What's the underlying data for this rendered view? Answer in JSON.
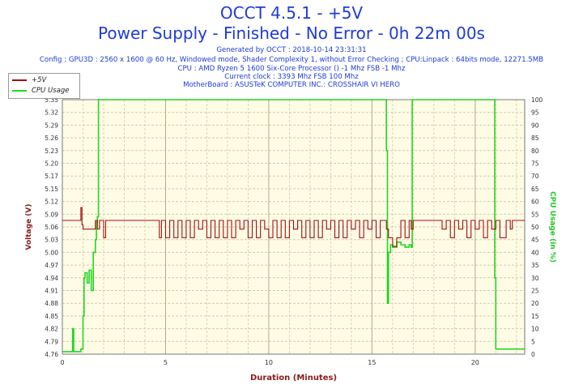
{
  "title_line1": "OCCT 4.5.1 - +5V",
  "title_line2": "Power Supply - Finished - No Error - 0h 22m 00s",
  "info": {
    "generated": "Generated by OCCT : 2018-10-14 23:31:31",
    "config": "Config : GPU3D : 2560 x 1600 @ 60 Hz, Windowed mode, Shader Complexity 1, without Error Checking ; CPU:Linpack : 64bits mode, 12271.5MB",
    "cpu": "CPU : AMD Ryzen 5 1600 Six-Core Processor () -1 Mhz FSB -1 Mhz",
    "clock": "Current clock : 3393 Mhz FSB 100 Mhz",
    "motherboard": "MotherBoard : ASUSTeK COMPUTER INC.: CROSSHAIR VI HERO"
  },
  "colors": {
    "voltage": "#9c1010",
    "cpu": "#22d622",
    "axis_left": "#8b1a1a",
    "axis_right": "#22c822",
    "plot_bg": "#fffce6",
    "grid": "#d6c9a8",
    "title": "#1f3bd6"
  },
  "chart_data": {
    "type": "line",
    "xlabel": "Duration (Minutes)",
    "ylabel_left": "Voltage (V)",
    "ylabel_right": "CPU Usage (in %)",
    "xlim": [
      0,
      22.4
    ],
    "ylim_left": [
      4.76,
      5.35
    ],
    "ylim_right": [
      0,
      100
    ],
    "x_ticks": [
      "0",
      "5",
      "10",
      "15",
      "20"
    ],
    "x_tick_values": [
      0,
      5,
      10,
      15,
      20
    ],
    "y_left_ticks": [
      "4.76",
      "4.79",
      "4.82",
      "4.85",
      "4.88",
      "4.91",
      "4.94",
      "4.97",
      "5.00",
      "5.03",
      "5.06",
      "5.09",
      "5.12",
      "5.15",
      "5.17",
      "5.20",
      "5.23",
      "5.26",
      "5.29",
      "5.32",
      "5.35"
    ],
    "y_right_ticks": [
      "0",
      "5",
      "10",
      "15",
      "20",
      "25",
      "30",
      "35",
      "40",
      "45",
      "50",
      "55",
      "60",
      "65",
      "70",
      "75",
      "80",
      "85",
      "90",
      "95",
      "100"
    ],
    "legend": [
      "+5V",
      "CPU Usage"
    ],
    "grid": true,
    "series": [
      {
        "name": "+5V",
        "axis": "left",
        "x": [
          0,
          0.8,
          0.9,
          0.95,
          1.0,
          1.05,
          1.1,
          1.15,
          1.5,
          1.6,
          1.7,
          1.8,
          2.0,
          2.1,
          2.2,
          4.6,
          4.7,
          4.8,
          5.0,
          5.2,
          5.4,
          5.6,
          5.8,
          6.0,
          6.2,
          6.4,
          6.6,
          6.8,
          7.0,
          7.2,
          7.4,
          7.6,
          7.8,
          8.0,
          8.2,
          8.4,
          8.6,
          8.8,
          9.0,
          9.2,
          9.4,
          9.6,
          9.8,
          10.0,
          10.2,
          10.4,
          10.6,
          10.8,
          11.0,
          11.2,
          11.4,
          11.6,
          11.8,
          12.0,
          12.2,
          12.4,
          12.6,
          12.8,
          13.0,
          13.2,
          13.4,
          13.6,
          13.8,
          14.0,
          14.2,
          14.4,
          14.6,
          14.8,
          15.0,
          15.2,
          15.4,
          15.6,
          15.7,
          15.8,
          16.0,
          16.2,
          16.4,
          16.6,
          16.8,
          16.9,
          17.0,
          17.2,
          17.4,
          17.6,
          17.8,
          18.0,
          18.2,
          18.4,
          18.6,
          18.8,
          19.0,
          19.2,
          19.4,
          19.6,
          19.8,
          20.0,
          20.2,
          20.4,
          20.6,
          20.8,
          21.0,
          21.2,
          21.5,
          21.7,
          21.8,
          22.4
        ],
        "values": [
          5.07,
          5.07,
          5.1,
          5.06,
          5.05,
          5.05,
          5.05,
          5.05,
          5.05,
          5.07,
          5.05,
          5.07,
          5.03,
          5.07,
          5.07,
          5.07,
          5.03,
          5.07,
          5.03,
          5.07,
          5.03,
          5.07,
          5.03,
          5.07,
          5.03,
          5.07,
          5.05,
          5.07,
          5.03,
          5.07,
          5.03,
          5.07,
          5.03,
          5.07,
          5.03,
          5.07,
          5.05,
          5.07,
          5.03,
          5.07,
          5.03,
          5.07,
          5.05,
          5.03,
          5.07,
          5.03,
          5.07,
          5.03,
          5.07,
          5.05,
          5.07,
          5.03,
          5.07,
          5.03,
          5.07,
          5.03,
          5.07,
          5.05,
          5.07,
          5.03,
          5.07,
          5.03,
          5.07,
          5.05,
          5.07,
          5.03,
          5.07,
          5.05,
          5.07,
          5.03,
          5.07,
          5.07,
          5.05,
          5.03,
          5.01,
          5.03,
          5.07,
          5.03,
          5.07,
          5.05,
          5.07,
          5.07,
          5.07,
          5.07,
          5.07,
          5.07,
          5.07,
          5.05,
          5.07,
          5.03,
          5.07,
          5.05,
          5.07,
          5.03,
          5.07,
          5.05,
          5.07,
          5.03,
          5.07,
          5.05,
          5.07,
          5.03,
          5.07,
          5.05,
          5.07,
          5.07
        ]
      },
      {
        "name": "CPU Usage",
        "axis": "right",
        "x": [
          0,
          0.4,
          0.5,
          0.55,
          0.6,
          0.8,
          0.9,
          1.0,
          1.05,
          1.1,
          1.2,
          1.3,
          1.4,
          1.5,
          1.6,
          1.65,
          1.7,
          1.75,
          1.8,
          15.6,
          15.7,
          15.75,
          15.8,
          15.9,
          16.0,
          16.2,
          16.4,
          16.6,
          16.8,
          16.9,
          16.95,
          17.0,
          20.9,
          20.95,
          21.0,
          21.1,
          22.4
        ],
        "values": [
          1,
          1,
          10,
          1,
          1,
          1,
          2,
          15,
          30,
          32,
          28,
          33,
          25,
          40,
          45,
          52,
          54,
          100,
          100,
          100,
          80,
          20,
          40,
          43,
          42,
          44,
          43,
          42,
          43,
          42,
          100,
          100,
          100,
          30,
          2,
          2,
          2
        ]
      }
    ]
  }
}
